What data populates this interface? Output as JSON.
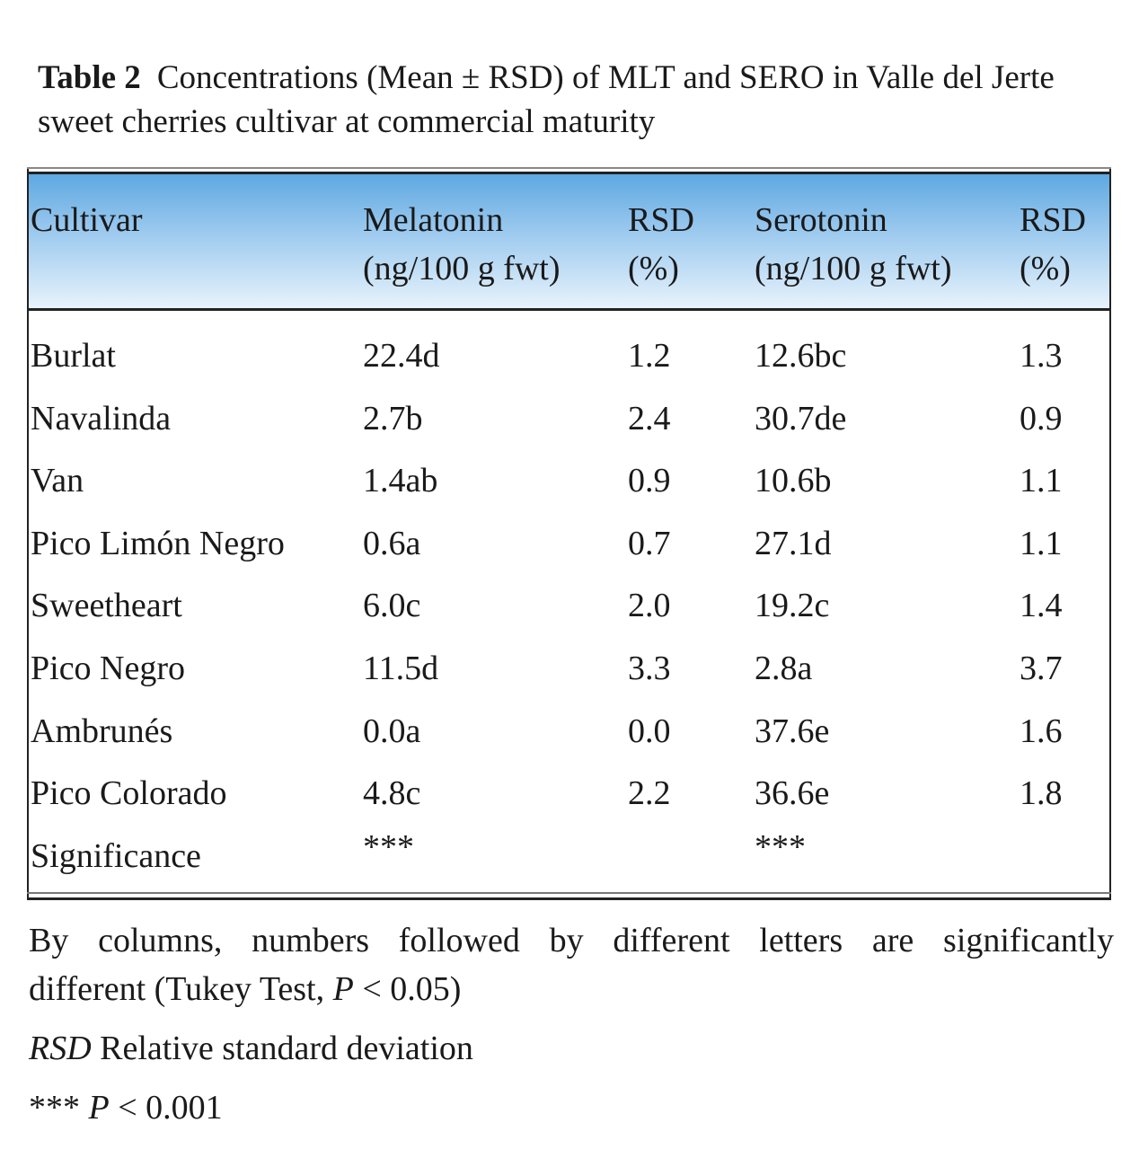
{
  "caption": {
    "label": "Table 2",
    "text": "Concentrations (Mean ± RSD) of MLT and SERO in Valle del Jerte sweet cherries cultivar at commercial maturity"
  },
  "table": {
    "headers": [
      {
        "line1": "Cultivar",
        "line2": ""
      },
      {
        "line1": "Melatonin",
        "line2": "(ng/100 g fwt)"
      },
      {
        "line1": "RSD",
        "line2": "(%)"
      },
      {
        "line1": "Serotonin",
        "line2": "(ng/100 g fwt)"
      },
      {
        "line1": "RSD",
        "line2": "(%)"
      }
    ],
    "rows": [
      [
        "Burlat",
        "22.4d",
        "1.2",
        "12.6bc",
        "1.3"
      ],
      [
        "Navalinda",
        "2.7b",
        "2.4",
        "30.7de",
        "0.9"
      ],
      [
        "Van",
        "1.4ab",
        "0.9",
        "10.6b",
        "1.1"
      ],
      [
        "Pico Limón Negro",
        "0.6a",
        "0.7",
        "27.1d",
        "1.1"
      ],
      [
        "Sweetheart",
        "6.0c",
        "2.0",
        "19.2c",
        "1.4"
      ],
      [
        "Pico Negro",
        "11.5d",
        "3.3",
        "2.8a",
        "3.7"
      ],
      [
        "Ambrunés",
        "0.0a",
        "0.0",
        "37.6e",
        "1.6"
      ],
      [
        "Pico Colorado",
        "4.8c",
        "2.2",
        "36.6e",
        "1.8"
      ]
    ],
    "significance": {
      "label": "Significance",
      "melatonin": "***",
      "serotonin": "***"
    }
  },
  "notes": {
    "line1a": "By columns, numbers followed by different letters are significantly",
    "line1b_pre": "different (Tukey Test, ",
    "line1b_p": "P",
    "line1b_post": " < 0.05)",
    "rsd_abbr": "RSD",
    "rsd_text": " Relative standard deviation",
    "sig_stars": "*** ",
    "sig_p": "P",
    "sig_text": " < 0.001"
  },
  "colors": {
    "header_top": "#5ea8e2",
    "header_bottom": "#e8f3fc"
  }
}
